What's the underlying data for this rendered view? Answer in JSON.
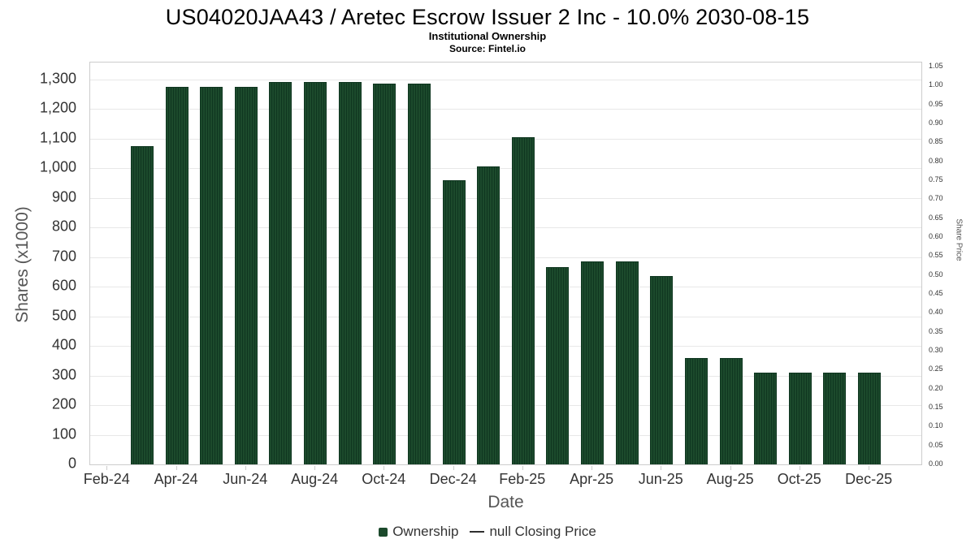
{
  "header": {
    "title": "US04020JAA43 / Aretec Escrow Issuer 2 Inc - 10.0% 2030-08-15",
    "subtitle": "Institutional Ownership",
    "source": "Source: Fintel.io"
  },
  "chart_data": {
    "type": "bar",
    "title": "US04020JAA43 / Aretec Escrow Issuer 2 Inc - 10.0% 2030-08-15",
    "subtitle": "Institutional Ownership",
    "source": "Source: Fintel.io",
    "xlabel": "Date",
    "ylabel_left": "Shares (x1000)",
    "ylabel_right": "Share Price",
    "categories": [
      "Mar-24",
      "Apr-24",
      "May-24",
      "Jun-24",
      "Jul-24",
      "Aug-24",
      "Sep-24",
      "Oct-24",
      "Nov-24",
      "Dec-24",
      "Jan-25",
      "Feb-25",
      "Mar-25",
      "Apr-25",
      "May-25",
      "Jun-25",
      "Jul-25",
      "Aug-25",
      "Sep-25",
      "Oct-25",
      "Nov-25",
      "Dec-25"
    ],
    "values": [
      1075,
      1275,
      1275,
      1275,
      1290,
      1290,
      1290,
      1285,
      1285,
      960,
      1005,
      1105,
      665,
      685,
      685,
      635,
      360,
      360,
      310,
      310,
      310,
      310
    ],
    "series": [
      {
        "name": "Ownership",
        "type": "bar",
        "values": [
          1075,
          1275,
          1275,
          1275,
          1290,
          1290,
          1290,
          1285,
          1285,
          960,
          1005,
          1105,
          665,
          685,
          685,
          635,
          360,
          360,
          310,
          310,
          310,
          310
        ]
      },
      {
        "name": "null Closing Price",
        "type": "line",
        "values": []
      }
    ],
    "axis": {
      "slot_count": 24,
      "first_bar_slot": 1
    },
    "x_ticks": [
      {
        "slot": 0,
        "label": "Feb-24"
      },
      {
        "slot": 2,
        "label": "Apr-24"
      },
      {
        "slot": 4,
        "label": "Jun-24"
      },
      {
        "slot": 6,
        "label": "Aug-24"
      },
      {
        "slot": 8,
        "label": "Oct-24"
      },
      {
        "slot": 10,
        "label": "Dec-24"
      },
      {
        "slot": 12,
        "label": "Feb-25"
      },
      {
        "slot": 14,
        "label": "Apr-25"
      },
      {
        "slot": 16,
        "label": "Jun-25"
      },
      {
        "slot": 18,
        "label": "Aug-25"
      },
      {
        "slot": 20,
        "label": "Oct-25"
      },
      {
        "slot": 22,
        "label": "Dec-25"
      }
    ],
    "y_left": {
      "step": 100,
      "axis_max": 1357,
      "ticks": [
        "0",
        "100",
        "200",
        "300",
        "400",
        "500",
        "600",
        "700",
        "800",
        "900",
        "1,000",
        "1,100",
        "1,200",
        "1,300"
      ]
    },
    "y_right": {
      "step": 0.05,
      "axis_max": 1.0605,
      "ticks": [
        "0.00",
        "0.05",
        "0.10",
        "0.15",
        "0.20",
        "0.25",
        "0.30",
        "0.35",
        "0.40",
        "0.45",
        "0.50",
        "0.55",
        "0.60",
        "0.65",
        "0.70",
        "0.75",
        "0.80",
        "0.85",
        "0.90",
        "0.95",
        "1.00",
        "1.05"
      ]
    },
    "ylim": [
      0,
      1357
    ],
    "grid": "on",
    "legend_position": "bottom",
    "legend": [
      {
        "label": "Ownership",
        "symbol": "square"
      },
      {
        "label": "null Closing Price",
        "symbol": "line"
      }
    ],
    "colors": {
      "bar_fill": "#1c4a2c",
      "bar_stripe": "#0f3620",
      "grid": "#e8e8e8",
      "axis_border": "#cccccc",
      "tick_text": "#333333",
      "axis_title_text": "#555555"
    }
  }
}
